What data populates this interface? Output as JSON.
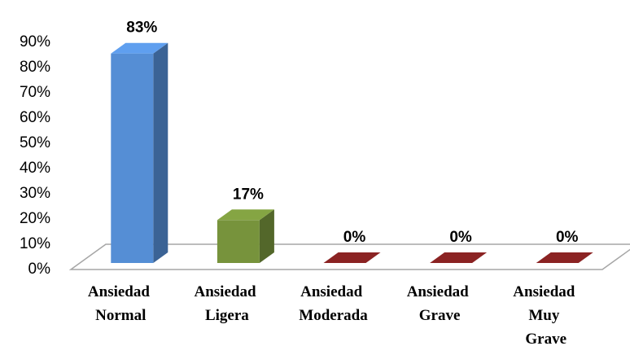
{
  "chart_data": {
    "type": "bar3d",
    "categories": [
      "Ansiedad Normal",
      "Ansiedad Ligera",
      "Ansiedad Moderada",
      "Ansiedad Grave",
      "Ansiedad Muy Grave"
    ],
    "values": [
      83,
      17,
      0,
      0,
      0
    ],
    "value_labels": [
      "83%",
      "17%",
      "0%",
      "0%",
      "0%"
    ],
    "colors": [
      "#558ed5",
      "#77933c",
      "#8b2323",
      "#8b2323",
      "#8b2323"
    ],
    "ylim": [
      0,
      90
    ],
    "yticks": [
      {
        "value": 0,
        "label": "0%"
      },
      {
        "value": 10,
        "label": "10%"
      },
      {
        "value": 20,
        "label": "20%"
      },
      {
        "value": 30,
        "label": "30%"
      },
      {
        "value": 40,
        "label": "40%"
      },
      {
        "value": 50,
        "label": "50%"
      },
      {
        "value": 60,
        "label": "60%"
      },
      {
        "value": 70,
        "label": "70%"
      },
      {
        "value": 80,
        "label": "80%"
      },
      {
        "value": 90,
        "label": "90%"
      }
    ],
    "grid": false
  }
}
